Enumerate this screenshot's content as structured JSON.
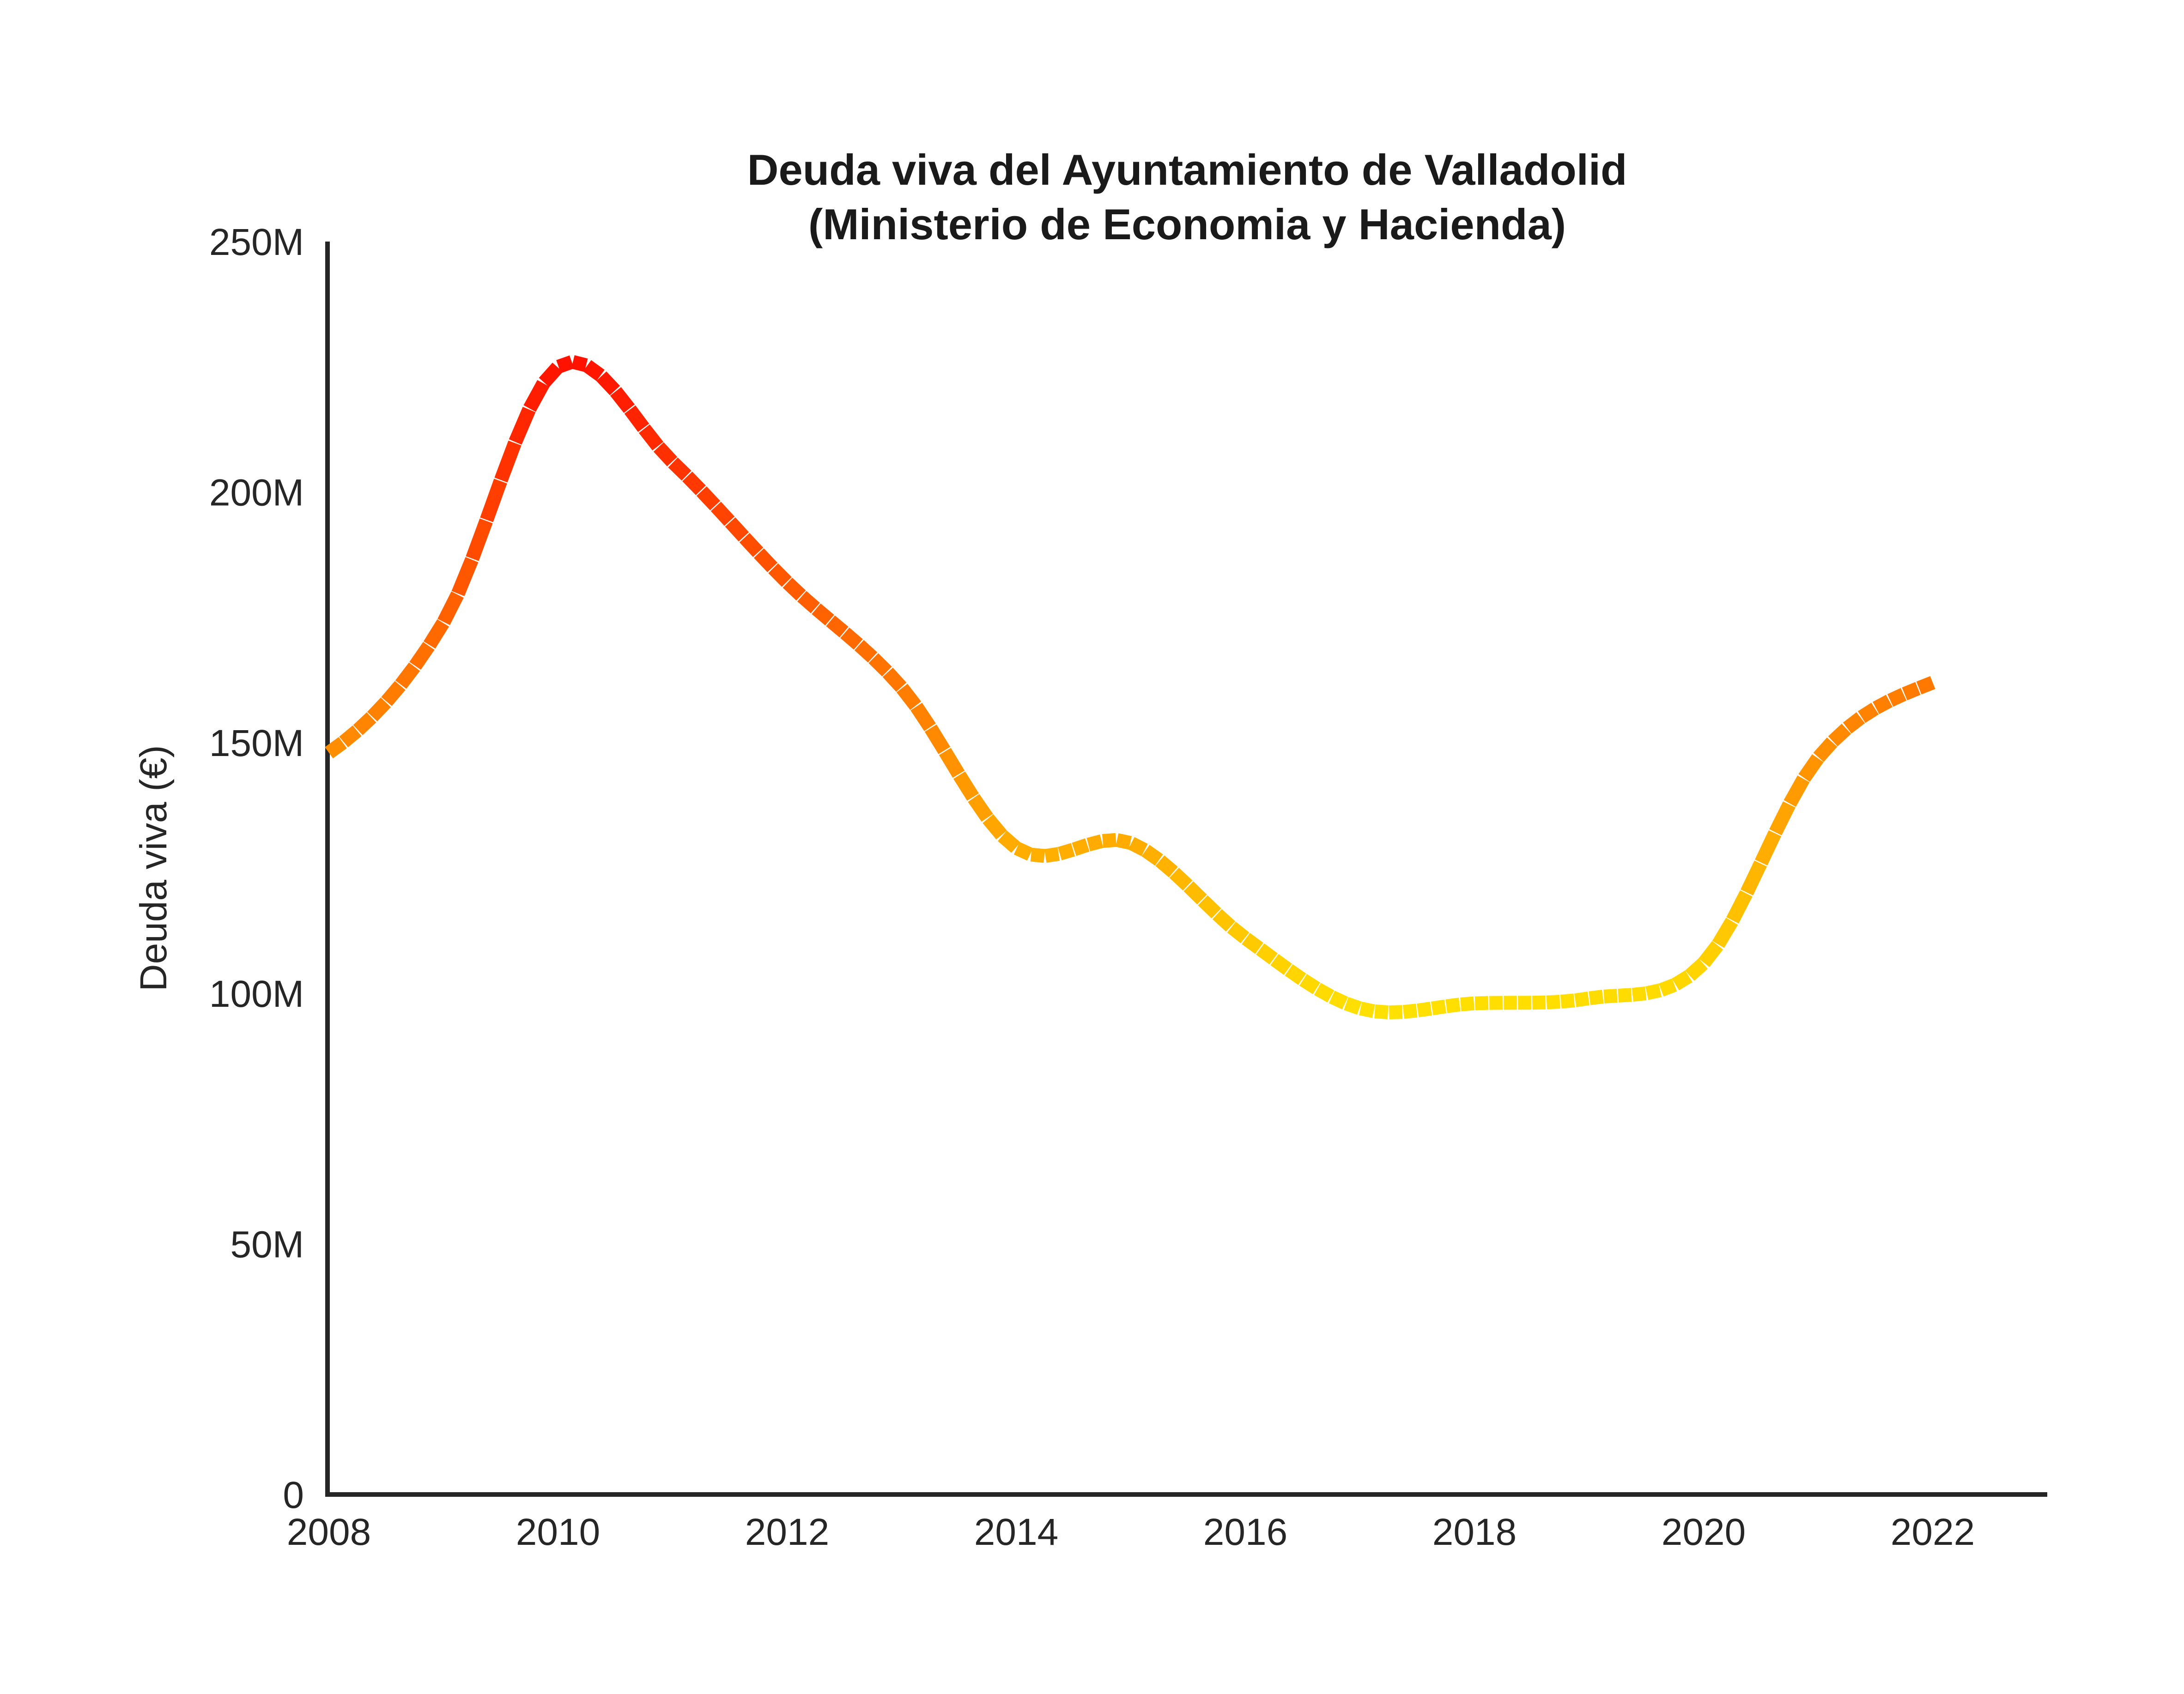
{
  "title": {
    "line1": "Deuda viva del Ayuntamiento de Valladolid",
    "line2": "(Ministerio de Economia y Hacienda)"
  },
  "chart_data": {
    "type": "line",
    "title": "Deuda viva del Ayuntamiento de Valladolid (Ministerio de Economia y Hacienda)",
    "xlabel": "",
    "ylabel": "Deuda viva (€)",
    "values_unit": "millions of euros",
    "x": [
      2008,
      2009,
      2010,
      2011,
      2012,
      2013,
      2014,
      2015,
      2016,
      2017,
      2018,
      2019,
      2020,
      2021,
      2022
    ],
    "values": [
      148,
      174,
      225,
      206,
      182,
      161,
      129,
      130,
      111,
      97,
      98,
      99,
      106,
      147,
      162
    ],
    "xlim": [
      2008,
      2023
    ],
    "ylim_m": [
      0,
      250
    ],
    "x_ticks": [
      {
        "value": 2008,
        "label": "2008"
      },
      {
        "value": 2010,
        "label": "2010"
      },
      {
        "value": 2012,
        "label": "2012"
      },
      {
        "value": 2014,
        "label": "2014"
      },
      {
        "value": 2016,
        "label": "2016"
      },
      {
        "value": 2018,
        "label": "2018"
      },
      {
        "value": 2020,
        "label": "2020"
      },
      {
        "value": 2022,
        "label": "2022"
      }
    ],
    "y_ticks": [
      {
        "value": 0,
        "label": "0"
      },
      {
        "value": 50,
        "label": "50M"
      },
      {
        "value": 100,
        "label": "100M"
      },
      {
        "value": 150,
        "label": "150M"
      },
      {
        "value": 200,
        "label": "200M"
      },
      {
        "value": 250,
        "label": "250M"
      }
    ],
    "grid": false,
    "legend": "none",
    "smoothing": "spline",
    "line_style": "thick segmented stroke, color mapped to value",
    "colormap": {
      "high_value_color": "#FF1400",
      "mid_value_color": "#FF8C00",
      "low_value_color": "#FFE000",
      "norm_min_m": 77.5,
      "norm_max_m": 237.5
    }
  },
  "axes": {
    "spine_color": "#262626",
    "text_color": "#262626"
  }
}
